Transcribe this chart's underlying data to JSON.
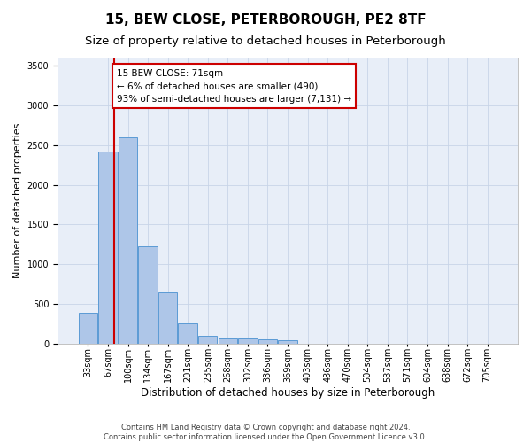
{
  "title": "15, BEW CLOSE, PETERBOROUGH, PE2 8TF",
  "subtitle": "Size of property relative to detached houses in Peterborough",
  "xlabel": "Distribution of detached houses by size in Peterborough",
  "ylabel": "Number of detached properties",
  "categories": [
    "33sqm",
    "67sqm",
    "100sqm",
    "134sqm",
    "167sqm",
    "201sqm",
    "235sqm",
    "268sqm",
    "302sqm",
    "336sqm",
    "369sqm",
    "403sqm",
    "436sqm",
    "470sqm",
    "504sqm",
    "537sqm",
    "571sqm",
    "604sqm",
    "638sqm",
    "672sqm",
    "705sqm"
  ],
  "values": [
    390,
    2420,
    2600,
    1230,
    640,
    260,
    100,
    70,
    65,
    55,
    45,
    0,
    0,
    0,
    0,
    0,
    0,
    0,
    0,
    0,
    0
  ],
  "bar_color": "#aec6e8",
  "bar_edge_color": "#5b9bd5",
  "property_line_x": 1.3,
  "property_line_color": "#cc0000",
  "annotation_text": "15 BEW CLOSE: 71sqm\n← 6% of detached houses are smaller (490)\n93% of semi-detached houses are larger (7,131) →",
  "annotation_box_color": "#cc0000",
  "ylim": [
    0,
    3600
  ],
  "yticks": [
    0,
    500,
    1000,
    1500,
    2000,
    2500,
    3000,
    3500
  ],
  "title_fontsize": 11,
  "subtitle_fontsize": 9.5,
  "xlabel_fontsize": 8.5,
  "ylabel_fontsize": 8,
  "tick_fontsize": 7,
  "annotation_fontsize": 7.5,
  "footer_text": "Contains HM Land Registry data © Crown copyright and database right 2024.\nContains public sector information licensed under the Open Government Licence v3.0.",
  "background_color": "#ffffff",
  "grid_color": "#c8d4e8",
  "plot_bg_color": "#e8eef8"
}
